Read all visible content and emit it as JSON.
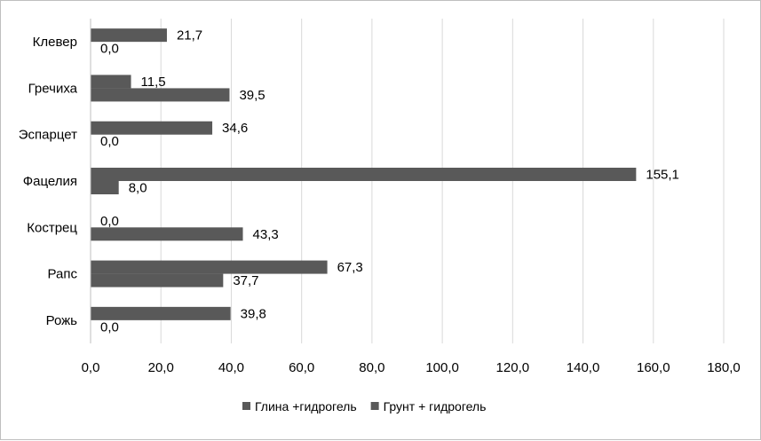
{
  "chart_data": {
    "type": "bar",
    "orientation": "horizontal",
    "categories": [
      "Клевер",
      "Гречиха",
      "Эспарцет",
      "Фацелия",
      "Кострец",
      "Рапс",
      "Рожь"
    ],
    "series": [
      {
        "name": "Глина +гидрогель",
        "values": [
          21.7,
          11.5,
          34.6,
          155.1,
          0.0,
          67.3,
          39.8
        ],
        "labels": [
          "21,7",
          "11,5",
          "34,6",
          "155,1",
          "0,0",
          "67,3",
          "39,8"
        ]
      },
      {
        "name": "Грунт + гидрогель",
        "values": [
          0.0,
          39.5,
          0.0,
          8.0,
          43.3,
          37.7,
          0.0
        ],
        "labels": [
          "0,0",
          "39,5",
          "0,0",
          "8,0",
          "43,3",
          "37,7",
          "0,0"
        ]
      }
    ],
    "xlim": [
      0,
      180
    ],
    "xticks": [
      0,
      20,
      40,
      60,
      80,
      100,
      120,
      140,
      160,
      180
    ],
    "xtick_labels": [
      "0,0",
      "20,0",
      "40,0",
      "60,0",
      "80,0",
      "100,0",
      "120,0",
      "140,0",
      "160,0",
      "180,0"
    ],
    "title": "",
    "xlabel": "",
    "ylabel": "",
    "grid": "vertical",
    "legend_position": "bottom",
    "colors": {
      "series": "#595959",
      "grid": "#d9d9d9",
      "axis": "#bfbfbf"
    }
  }
}
